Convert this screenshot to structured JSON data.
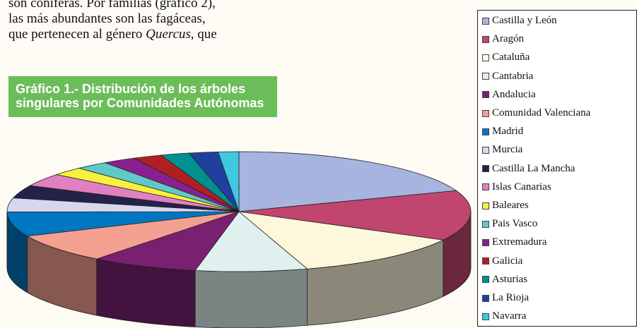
{
  "text": {
    "lines": [
      "son coníferas. Por familias (gráfico 2),",
      "las más abundantes son las fagáceas,"
    ],
    "last_line": {
      "before": "que pertenecen al género ",
      "italic": "Quercus",
      "after": ", que"
    }
  },
  "chart_data": {
    "type": "pie",
    "title": "Gráfico 1.- Distribución de los árboles singulares por Comunidades Autónomas",
    "categories": [
      "Castilla y León",
      "Aragón",
      "Cataluña",
      "Cantabria",
      "Andalucia",
      "Comunidad Valenciana",
      "Madrid",
      "Murcia",
      "Castilla La Mancha",
      "Islas Canarias",
      "Baleares",
      "Pais Vasco",
      "Extremadura",
      "Galicia",
      "Asturias",
      "La Rioja",
      "Navarra"
    ],
    "values": [
      67,
      47,
      43,
      27,
      26,
      27,
      23,
      13,
      12,
      12,
      8,
      8,
      8,
      7,
      7,
      7,
      5
    ],
    "colors": [
      "#a8b4e0",
      "#c0466f",
      "#fdf8dc",
      "#dff0ef",
      "#7a2070",
      "#f4a090",
      "#0077c0",
      "#d6d8f0",
      "#22224a",
      "#e080c0",
      "#f8f040",
      "#60c8c8",
      "#8a2090",
      "#b02020",
      "#009090",
      "#2040a0",
      "#40c8e0"
    ],
    "legend": "right"
  }
}
